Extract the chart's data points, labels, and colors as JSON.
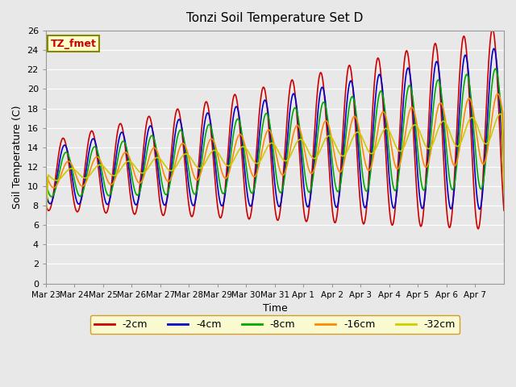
{
  "title": "Tonzi Soil Temperature Set D",
  "xlabel": "Time",
  "ylabel": "Soil Temperature (C)",
  "ylim": [
    0,
    26
  ],
  "yticks": [
    0,
    2,
    4,
    6,
    8,
    10,
    12,
    14,
    16,
    18,
    20,
    22,
    24,
    26
  ],
  "bg_color": "#e8e8e8",
  "series_colors": {
    "-2cm": "#cc0000",
    "-4cm": "#0000cc",
    "-8cm": "#00aa00",
    "-16cm": "#ff8800",
    "-32cm": "#cccc00"
  },
  "legend_box_color": "#ffffcc",
  "legend_box_edge": "#cc8800",
  "label_box_color": "#ffffcc",
  "label_box_edge": "#888800",
  "annotation_text": "TZ_fmet",
  "annotation_color": "#cc0000",
  "x_tick_labels": [
    "Mar 23",
    "Mar 24",
    "Mar 25",
    "Mar 26",
    "Mar 27",
    "Mar 28",
    "Mar 29",
    "Mar 30",
    "Mar 31",
    "Apr 1",
    "Apr 2",
    "Apr 3",
    "Apr 4",
    "Apr 5",
    "Apr 6",
    "Apr 7"
  ],
  "num_days": 16,
  "points_per_day": 48
}
